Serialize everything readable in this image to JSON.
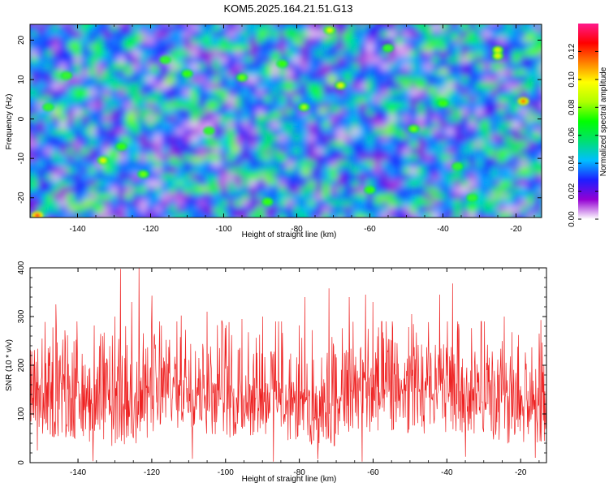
{
  "title": "KOM5.2025.164.21.51.G13",
  "chart_data": [
    {
      "type": "heatmap",
      "xlabel": "Height of straight line (km)",
      "ylabel": "Frequency (Hz)",
      "xlim": [
        -153,
        -13
      ],
      "ylim": [
        -25,
        24
      ],
      "x_ticks": [
        "-140",
        "-120",
        "-100",
        "-80",
        "-60",
        "-40",
        "-20"
      ],
      "y_ticks": [
        "-20",
        "-10",
        "0",
        "10",
        "20"
      ],
      "colorbar": {
        "label": "Normalized spectral amplitude",
        "range": [
          0,
          0.14
        ],
        "ticks": [
          "0.00",
          "0.02",
          "0.04",
          "0.06",
          "0.08",
          "0.10",
          "0.12"
        ],
        "colors": [
          "#ffffff",
          "#9400d3",
          "#1e1eff",
          "#00bfff",
          "#00e070",
          "#00ff00",
          "#b0ff00",
          "#ffff00",
          "#ff8000",
          "#ff0000",
          "#ff1a8c"
        ]
      },
      "hotspots": [
        {
          "x": -151,
          "y": -24.5,
          "v": 0.13
        },
        {
          "x": -18,
          "y": 4.5,
          "v": 0.12
        },
        {
          "x": -71,
          "y": 22.5,
          "v": 0.1
        },
        {
          "x": -68,
          "y": 8.5,
          "v": 0.1
        },
        {
          "x": -133,
          "y": -10.5,
          "v": 0.1
        },
        {
          "x": -25,
          "y": 17.5,
          "v": 0.1
        },
        {
          "x": -25,
          "y": 16,
          "v": 0.1
        },
        {
          "x": -78,
          "y": 3,
          "v": 0.09
        },
        {
          "x": -95,
          "y": 10.5,
          "v": 0.08
        },
        {
          "x": -122,
          "y": -14,
          "v": 0.08
        },
        {
          "x": -48,
          "y": -2.5,
          "v": 0.08
        },
        {
          "x": -128,
          "y": -7,
          "v": 0.07
        },
        {
          "x": -60,
          "y": -18,
          "v": 0.07
        },
        {
          "x": -88,
          "y": -21,
          "v": 0.07
        },
        {
          "x": -40,
          "y": 4,
          "v": 0.07
        },
        {
          "x": -110,
          "y": 11.5,
          "v": 0.07
        },
        {
          "x": -84,
          "y": 14,
          "v": 0.07
        },
        {
          "x": -143,
          "y": 11,
          "v": 0.06
        },
        {
          "x": -116,
          "y": 15,
          "v": 0.06
        },
        {
          "x": -55,
          "y": 18,
          "v": 0.06
        },
        {
          "x": -32,
          "y": -20,
          "v": 0.06
        },
        {
          "x": -148,
          "y": 3,
          "v": 0.06
        },
        {
          "x": -104,
          "y": -3,
          "v": 0.06
        },
        {
          "x": -36,
          "y": -12,
          "v": 0.06
        }
      ]
    },
    {
      "type": "line",
      "xlabel": "Height of straight line (km)",
      "ylabel": "SNR (10 * v/v)",
      "xlim": [
        -153,
        -13
      ],
      "ylim": [
        0,
        400
      ],
      "x_ticks": [
        "-140",
        "-120",
        "-100",
        "-80",
        "-60",
        "-40",
        "-20"
      ],
      "y_ticks": [
        "0",
        "100",
        "200",
        "300",
        "400"
      ],
      "color": "#ee2222",
      "samples": 1200,
      "baseline": 110,
      "peaks": [
        {
          "x": -128.5,
          "y": 398
        },
        {
          "x": -123.5,
          "y": 400
        },
        {
          "x": -125.5,
          "y": 330
        },
        {
          "x": -130,
          "y": 300
        },
        {
          "x": -146,
          "y": 325
        },
        {
          "x": -120,
          "y": 343
        },
        {
          "x": -72,
          "y": 358
        },
        {
          "x": -78.5,
          "y": 340
        },
        {
          "x": -38.5,
          "y": 368
        },
        {
          "x": -42,
          "y": 345
        },
        {
          "x": -90,
          "y": 300
        },
        {
          "x": -62,
          "y": 345
        },
        {
          "x": -66.5,
          "y": 340
        },
        {
          "x": -60,
          "y": 330
        },
        {
          "x": -105,
          "y": 310
        },
        {
          "x": -49.5,
          "y": 305
        },
        {
          "x": -14.5,
          "y": 293
        },
        {
          "x": -24.5,
          "y": 300
        },
        {
          "x": -95.5,
          "y": 295
        },
        {
          "x": -101,
          "y": 292
        },
        {
          "x": -112,
          "y": 302
        }
      ],
      "troughs": [
        {
          "x": -136,
          "y": 3
        },
        {
          "x": -151,
          "y": 25
        },
        {
          "x": -109,
          "y": 8
        },
        {
          "x": -87,
          "y": 2
        },
        {
          "x": -75,
          "y": 7
        },
        {
          "x": -63,
          "y": 2
        },
        {
          "x": -35,
          "y": 12
        },
        {
          "x": -16,
          "y": 10
        }
      ]
    }
  ]
}
